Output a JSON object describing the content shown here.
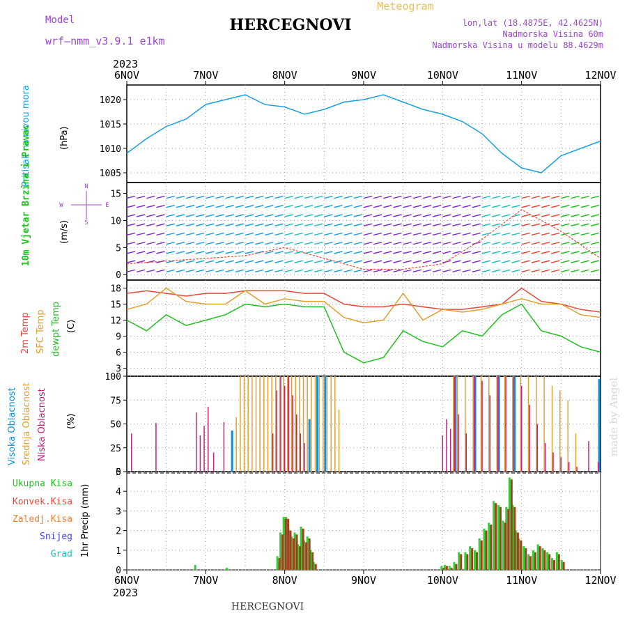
{
  "header": {
    "model_label": "Model",
    "model_value": "wrf—nmm_v3.9.1  e1km",
    "station": "HERCEGNOVI",
    "meteogram": "Meteogram",
    "lonlat": "lon,lat (18.4875E, 42.4625N)",
    "altitude": "Nadmorska Visina 60m",
    "model_altitude": "Nadmorska Visina u modelu 88.4629m",
    "footer_station": "HERCEGNOVI",
    "watermark": "made by Angel"
  },
  "time_axis": {
    "year": "2023",
    "ticks": [
      "6NOV",
      "7NOV",
      "8NOV",
      "9NOV",
      "10NOV",
      "11NOV",
      "12NOV"
    ]
  },
  "colors": {
    "pressure": "#1ba0e0",
    "temp2m": "#e84838",
    "sfc": "#e0a030",
    "dewpt": "#20c020",
    "high_cloud": "#1090e0",
    "mid_cloud": "#e0a030",
    "low_cloud": "#c02080",
    "total_precip": "#30d030",
    "conv_precip": "#a04020"
  },
  "chart_data": [
    {
      "type": "line",
      "ylabel_left": "Pritisak na nivou mora",
      "unit": "(hPa)",
      "ylim": [
        1003,
        1023
      ],
      "yticks": [
        1005,
        1010,
        1015,
        1020
      ],
      "x": [
        0,
        0.25,
        0.5,
        0.75,
        1.0,
        1.25,
        1.5,
        1.75,
        2.0,
        2.25,
        2.5,
        2.75,
        3.0,
        3.25,
        3.5,
        3.75,
        4.0,
        4.25,
        4.5,
        4.75,
        5.0,
        5.25,
        5.5,
        5.75,
        6.0
      ],
      "values": [
        1009,
        1012,
        1014.5,
        1016,
        1019,
        1020,
        1021,
        1019,
        1018.5,
        1017,
        1018,
        1019.5,
        1020,
        1021,
        1019.5,
        1018,
        1017,
        1015.5,
        1013,
        1009,
        1006,
        1005,
        1008.5,
        1010,
        1011.5
      ],
      "grid": true
    },
    {
      "type": "barbs",
      "ylabel_left": "10m Vjetar Brzina i Pravac",
      "unit": "(m/s)",
      "compass": {
        "n": "N",
        "s": "S",
        "w": "W",
        "e": "E"
      },
      "ylim": [
        -1,
        17
      ],
      "yticks": [
        0,
        5,
        10,
        15
      ],
      "x": [
        0,
        0.5,
        1.0,
        1.5,
        2.0,
        2.5,
        3.0,
        3.5,
        4.0,
        4.5,
        5.0,
        5.5,
        6.0
      ],
      "speed": [
        2,
        2.5,
        3,
        3.5,
        5,
        3,
        1,
        1,
        2,
        6.5,
        12,
        8,
        3
      ]
    },
    {
      "type": "line",
      "ylabel_left": [
        "2m Temp",
        "SFC Temp",
        "dewpt Temp"
      ],
      "unit": "(C)",
      "ylim": [
        1.5,
        19.5
      ],
      "yticks": [
        3,
        6,
        9,
        12,
        15,
        18
      ],
      "x": [
        0,
        0.25,
        0.5,
        0.75,
        1.0,
        1.25,
        1.5,
        1.75,
        2.0,
        2.25,
        2.5,
        2.75,
        3.0,
        3.25,
        3.5,
        3.75,
        4.0,
        4.25,
        4.5,
        4.75,
        5.0,
        5.25,
        5.5,
        5.75,
        6.0
      ],
      "series": [
        {
          "name": "2m Temp",
          "values": [
            17,
            17.5,
            17,
            16.5,
            17,
            17,
            17.5,
            17.5,
            17.5,
            17,
            17,
            15,
            14.5,
            14.5,
            15,
            14.5,
            14,
            14,
            14.5,
            15,
            18,
            15.5,
            15,
            14,
            13.5
          ]
        },
        {
          "name": "SFC Temp",
          "values": [
            14,
            15,
            18,
            15.5,
            15,
            15,
            17.5,
            15,
            16,
            15.5,
            15.5,
            12.5,
            11.5,
            12,
            17,
            12,
            14,
            13.5,
            14,
            15,
            16,
            15,
            15,
            13,
            12.5
          ]
        },
        {
          "name": "dewpt Temp",
          "values": [
            12,
            10,
            13,
            11,
            12,
            13,
            15,
            14.5,
            15,
            14.5,
            14.5,
            6,
            4,
            5,
            10,
            8,
            7,
            10,
            9,
            13,
            15,
            10,
            9,
            7,
            6
          ]
        }
      ]
    },
    {
      "type": "bar",
      "ylabel_left": [
        "Visoka Oblacnost",
        "Srednja Oblacnost",
        "Niska Oblacnost"
      ],
      "unit": "(%)",
      "ylim": [
        0,
        100
      ],
      "yticks": [
        0,
        25,
        50,
        75,
        100
      ],
      "x": [
        0.06,
        0.37,
        0.88,
        0.93,
        0.98,
        1.03,
        1.1,
        1.23,
        1.32,
        1.4,
        1.45,
        1.5,
        1.55,
        1.6,
        1.65,
        1.7,
        1.75,
        1.8,
        1.85,
        1.9,
        1.95,
        2.0,
        2.05,
        2.1,
        2.15,
        2.2,
        2.25,
        2.3,
        2.35,
        2.4,
        2.45,
        2.5,
        2.55,
        2.6,
        2.65,
        2.7,
        4.0,
        4.05,
        4.1,
        4.15,
        4.2,
        4.3,
        4.4,
        4.5,
        4.6,
        4.7,
        4.8,
        4.9,
        5.0,
        5.1,
        5.2,
        5.3,
        5.4,
        5.5,
        5.6,
        5.7,
        5.85,
        5.97
      ],
      "series": [
        {
          "name": "Visoka Oblacnost",
          "values": [
            0,
            0,
            0,
            0,
            0,
            0,
            0,
            0,
            43,
            0,
            0,
            0,
            0,
            0,
            0,
            0,
            0,
            0,
            0,
            0,
            0,
            0,
            0,
            0,
            0,
            0,
            0,
            55,
            0,
            100,
            0,
            100,
            0,
            0,
            0,
            0,
            0,
            0,
            0,
            100,
            0,
            0,
            100,
            0,
            0,
            100,
            0,
            100,
            0,
            0,
            0,
            0,
            0,
            0,
            0,
            0,
            0,
            97
          ]
        },
        {
          "name": "Srednja Oblacnost",
          "values": [
            0,
            0,
            0,
            0,
            0,
            0,
            0,
            0,
            0,
            57,
            100,
            100,
            100,
            100,
            100,
            100,
            100,
            100,
            100,
            100,
            100,
            100,
            100,
            100,
            100,
            100,
            100,
            100,
            100,
            100,
            100,
            100,
            100,
            100,
            100,
            65,
            0,
            0,
            0,
            100,
            100,
            100,
            100,
            100,
            100,
            100,
            100,
            100,
            100,
            100,
            100,
            100,
            90,
            85,
            75,
            40,
            0,
            0
          ]
        },
        {
          "name": "Niska Oblacnost",
          "values": [
            40,
            51,
            62,
            38,
            48,
            68,
            20,
            52,
            0,
            0,
            0,
            0,
            0,
            0,
            0,
            0,
            0,
            0,
            40,
            85,
            100,
            90,
            100,
            80,
            60,
            40,
            30,
            0,
            0,
            0,
            0,
            0,
            0,
            0,
            0,
            0,
            38,
            55,
            45,
            100,
            60,
            40,
            100,
            95,
            80,
            100,
            100,
            100,
            90,
            70,
            50,
            30,
            20,
            15,
            10,
            5,
            32,
            10
          ]
        }
      ]
    },
    {
      "type": "bar",
      "ylabel_left": [
        "Ukupna Kisa",
        "Konvek.Kisa",
        "Zaledj.Kisa",
        "Snijeg",
        "Grad"
      ],
      "ylabel_right": "1hr Precip (mm)",
      "ylim": [
        0,
        5
      ],
      "yticks": [
        0,
        1,
        2,
        3,
        4,
        5
      ],
      "x": [
        0.88,
        1.28,
        1.92,
        1.96,
        2.0,
        2.03,
        2.06,
        2.1,
        2.14,
        2.18,
        2.22,
        2.26,
        2.3,
        2.34,
        2.38,
        4.0,
        4.04,
        4.1,
        4.16,
        4.22,
        4.3,
        4.36,
        4.42,
        4.48,
        4.54,
        4.6,
        4.66,
        4.72,
        4.78,
        4.82,
        4.86,
        4.9,
        4.94,
        4.98,
        5.04,
        5.1,
        5.16,
        5.22,
        5.28,
        5.34,
        5.4,
        5.46,
        5.52
      ],
      "series": [
        {
          "name": "Ukupna Kisa",
          "values": [
            0.25,
            0.1,
            0.7,
            1.9,
            2.7,
            2.7,
            2.1,
            1.7,
            1.9,
            1.3,
            2.2,
            1.5,
            1.7,
            1.0,
            0.4,
            0.2,
            0.25,
            0.2,
            0.4,
            0.9,
            0.9,
            1.2,
            1.0,
            1.6,
            2.1,
            2.4,
            3.5,
            3.3,
            2.5,
            3.2,
            4.7,
            3.3,
            2.0,
            1.6,
            1.2,
            0.8,
            1.0,
            1.3,
            1.1,
            0.9,
            0.6,
            0.9,
            0.5
          ]
        },
        {
          "name": "Konvek.Kisa",
          "values": [
            0,
            0,
            0.6,
            1.8,
            2.6,
            2.6,
            2.0,
            1.6,
            1.8,
            1.2,
            2.1,
            1.4,
            1.6,
            0.9,
            0.3,
            0.1,
            0.2,
            0.1,
            0.3,
            0.8,
            0.8,
            1.1,
            0.9,
            1.5,
            2.0,
            2.3,
            3.4,
            3.2,
            2.4,
            3.1,
            4.6,
            3.2,
            1.9,
            1.5,
            1.1,
            0.7,
            0.9,
            1.2,
            1.0,
            0.8,
            0.5,
            0.8,
            0.4
          ]
        }
      ]
    }
  ]
}
